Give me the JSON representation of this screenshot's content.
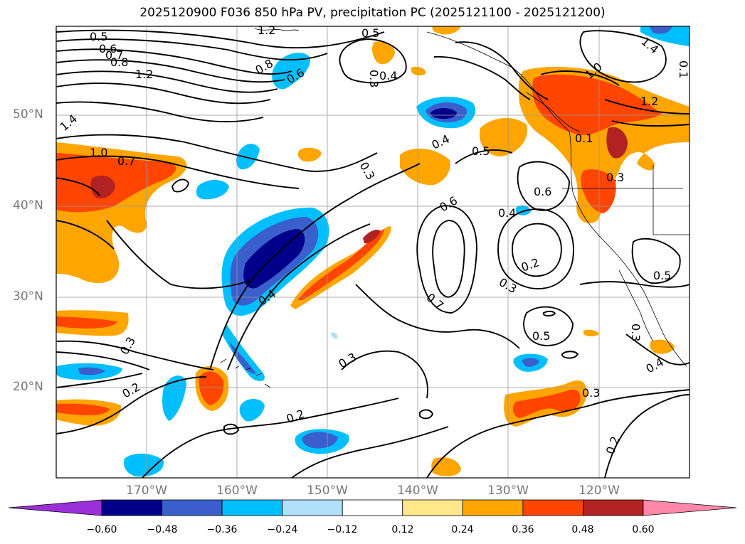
{
  "title": "2025120900 F036 850 hPa PV, precipitation PC (2025121100 - 2025121200)",
  "axes": {
    "lat_labels": [
      "50°N",
      "40°N",
      "30°N",
      "20°N"
    ],
    "lon_labels": [
      "170°W",
      "160°W",
      "150°W",
      "140°W",
      "130°W",
      "120°W"
    ]
  },
  "colorbar": {
    "ticks": [
      "−0.60",
      "−0.48",
      "−0.36",
      "−0.24",
      "−0.12",
      "0.12",
      "0.24",
      "0.36",
      "0.48",
      "0.60"
    ],
    "colors": [
      "#9b30d9",
      "#00008b",
      "#3a5fcd",
      "#00bfff",
      "#b0e0fa",
      "#ffffff",
      "#ffe88a",
      "#ffa500",
      "#ff4500",
      "#b22222",
      "#ff88aa"
    ]
  },
  "contour_labels": [
    "0.5",
    "0.6",
    "0.7",
    "0.8",
    "1.2",
    "1.4",
    "1.0",
    "0.7",
    "0.8",
    "0.6",
    "0.5",
    "0.3",
    "0.4",
    "0.4",
    "0.5",
    "0.3",
    "0.6",
    "0.6",
    "0.4",
    "0.3",
    "0.2",
    "0.7",
    "0.5",
    "0.5",
    "0.3",
    "0.4",
    "0.4",
    "0.3",
    "1.2",
    "1.0",
    "1.4",
    "1.2",
    "0.1",
    "0.3",
    "0.2",
    "0.3",
    "0.2",
    "0.3",
    "0.2",
    "0.1"
  ]
}
